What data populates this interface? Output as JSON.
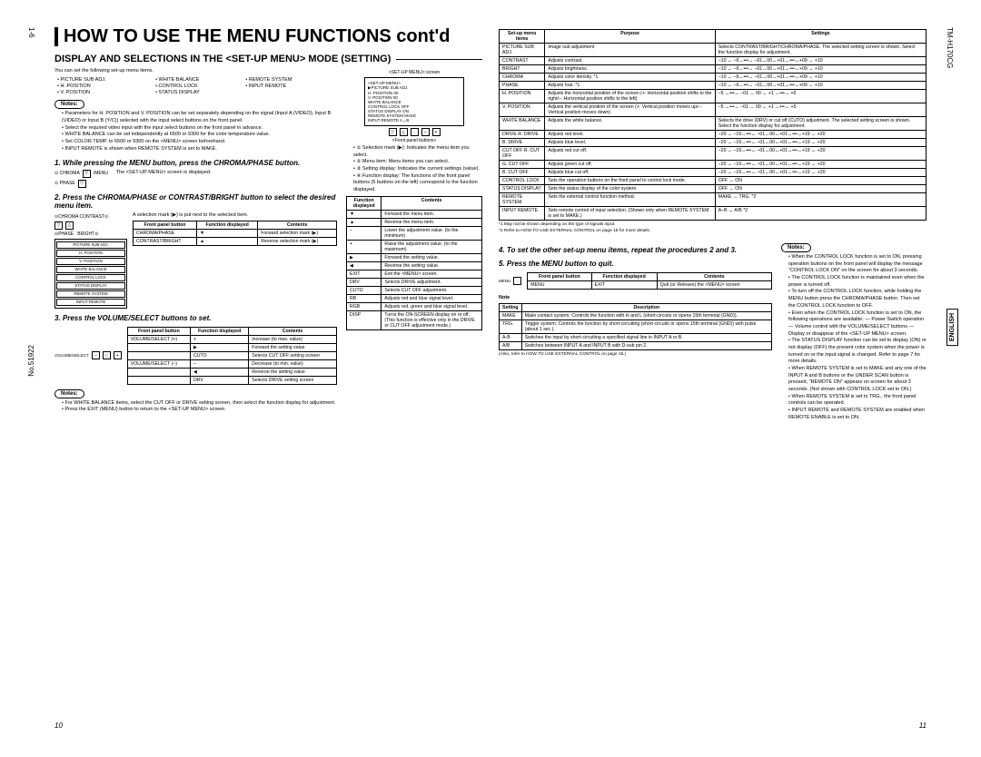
{
  "side": {
    "page": "1-6",
    "docnum": "No.51922",
    "model": "TM-H170CG",
    "lang": "ENGLISH"
  },
  "title": "HOW TO USE THE MENU FUNCTIONS cont'd",
  "subtitle": "DISPLAY AND SELECTIONS IN THE <SET-UP MENU> MODE (SETTING)",
  "intro": "You can set the following set-up menu items.",
  "menu_items_grid": [
    [
      "• PICTURE SUB ADJ.",
      "• WHITE BALANCE",
      "• REMOTE SYSTEM"
    ],
    [
      "• H. POSITION",
      "• CONTROL LOCK",
      "• INPUT REMOTE"
    ],
    [
      "• V. POSITION",
      "• STATUS DISPLAY",
      ""
    ]
  ],
  "notes1": [
    "Parameters for H. POSITION and V. POSITION can be set separately depending on the signal (Input A (VIDEO), Input B (VIDEO) or Input B (Y/C)) selected with the input select buttons on the front panel.",
    "Select the required video input with the input select buttons on the front panel in advance.",
    "WHITE BALANCE can be set independently at 6500 or 9300 for the color temperature value.",
    "Set COLOR TEMP. to 6500 or 9300 on the <MENU> screen beforehand.",
    "INPUT REMOTE is shown when REMOTE SYSTEM is set to MAKE."
  ],
  "screen_caption": "<SET-UP MENU> screen",
  "screen_lines": [
    "<SET-UP MENU>",
    "▶PICTURE SUB ADJ.",
    "H. POSITION         00",
    "V. POSITION         00",
    "WHITE BALANCE",
    "CONTROL LOCK    OFF",
    "STATUS DISPLAY   ON",
    "REMOTE SYSTEM  MAKE",
    "INPUT REMOTE     A↔B"
  ],
  "front_panel": "<Front panel buttons>",
  "circled_notes": [
    "① Selection mark (▶): Indicates the menu item you select.",
    "② Menu item: Menu items you can select.",
    "③ Setting display: Indicates the current settings (value).",
    "④ Function display: The functions of the front panel buttons (5 buttons on the left) correspond to the function displayed."
  ],
  "step1": "1. While pressing the MENU button, press the CHROMA/PHASE button.",
  "step1_desc": "The <SET-UP MENU> screen is displayed.",
  "step2": "2. Press the CHROMA/PHASE or CONTRAST/BRIGHT button to select the desired menu item.",
  "step2_desc": "A selection mark (▶) is put next to the selected item.",
  "table2": {
    "head": [
      "Front panel button",
      "Function displayed",
      "Contents"
    ],
    "rows": [
      [
        "CHROMA/PHASE",
        "▼",
        "Forward selection mark (▶)"
      ],
      [
        "CONTRAST/BRIGHT",
        "▲",
        "Reverse selection mark (▶)"
      ]
    ]
  },
  "setup_box_items": [
    "PICTURE SUB ADJ.",
    "H. POSITION",
    "V. POSITION",
    "WHITE BALANCE",
    "CONTROL LOCK",
    "STATUS DISPLAY",
    "REMOTE SYSTEM",
    "INPUT REMOTE"
  ],
  "step3": "3. Press the VOLUME/SELECT buttons to set.",
  "table3": {
    "head": [
      "Front panel button",
      "Function displayed",
      "Contents"
    ],
    "rows": [
      [
        "VOLUME/SELECT (+)",
        "+",
        "Increase (to max. value)"
      ],
      [
        "",
        "▶",
        "Forward the setting value"
      ],
      [
        "",
        "CUTO",
        "Selects CUT OFF setting screen"
      ],
      [
        "VOLUME/SELECT (–)",
        "–",
        "Decrease (to min. value)"
      ],
      [
        "",
        "◀",
        "Reverse the setting value"
      ],
      [
        "",
        "DRV",
        "Selects DRIVE setting screen"
      ]
    ]
  },
  "notes3": [
    "For WHITE BALANCE items, select the CUT OFF or DRIVE setting screen, then select the function display for adjustment.",
    "Press the EXIT (MENU) button to return to the <SET-UP MENU> screen."
  ],
  "function_table": {
    "head": [
      "Function displayed",
      "Contents"
    ],
    "rows": [
      [
        "▼",
        "Forward the menu item."
      ],
      [
        "▲",
        "Reverse the menu item."
      ],
      [
        "–",
        "Lower the adjustment value. (to the minimum)"
      ],
      [
        "+",
        "Raise the adjustment value. (to the maximum)"
      ],
      [
        "▶",
        "Forward the setting value."
      ],
      [
        "◀",
        "Reverse the setting value."
      ],
      [
        "EXIT",
        "Exit the <MENU> screen."
      ],
      [
        "DRV",
        "Selects DRIVE adjustment."
      ],
      [
        "CUTO",
        "Selects CUT OFF adjustment."
      ],
      [
        "RB",
        "Adjusts red and blue signal level."
      ],
      [
        "RGB",
        "Adjusts red, green and blue signal level."
      ],
      [
        "DISP",
        "Turns the ON-SCREEN display on or off. (This function is effective only in the DRIVE or CUT OFF adjustment mode.)"
      ]
    ]
  },
  "step4": "4. To set the other set-up menu items, repeat the procedures 2 and 3.",
  "step5": "5. Press the MENU button to quit.",
  "table5": {
    "head": [
      "Front panel button",
      "Function displayed",
      "Contents"
    ],
    "rows": [
      [
        "MENU",
        "EXIT",
        "Quit (or Release) the <MENU> screen"
      ]
    ]
  },
  "note_table": {
    "head": [
      "Setting",
      "Description"
    ],
    "rows": [
      [
        "MAKE",
        "Make contact system: Controls the function with H and L (short-circuits or opens 15th terminal (GND))."
      ],
      [
        "TRG.",
        "Trigger system: Controls the function by short-circuiting (short-circuits or opens 15th terminal (GND)) with pulse (about 1 sec.)."
      ],
      [
        "A-B",
        "Switches the input by short-circuiting a specified signal line in INPUT A or B."
      ],
      [
        "A/B",
        "Switches between INPUT A and INPUT B with D-sub pin 2."
      ]
    ]
  },
  "note_ref": "(Also, refer to HOW TO USE EXTERNAL CONTROL on page 15.)",
  "big_table": {
    "head": [
      "Set-up menu items",
      "Purpose",
      "Settings"
    ],
    "rows": [
      [
        "PICTURE SUB ADJ.",
        "Image sub adjustment",
        "Selects CONTRAST/BRIGHT/CHROMA/PHASE. The selected setting screen is shown. Select the function display for adjustment."
      ],
      [
        "    CONTRAST",
        "Adjusts contrast.",
        "–10 ↔ –9↔•••↔ –01↔00↔+01↔•••↔+09 ↔ +10"
      ],
      [
        "    BRIGHT",
        "Adjusts brightness.",
        "–10 ↔ –9↔•••↔ –01↔00↔+01↔•••↔+09 ↔ +10"
      ],
      [
        "    CHROMA",
        "Adjusts color density.           *1",
        "–10 ↔ –9↔•••↔ –01↔00↔+01↔•••↔+09 ↔ +10"
      ],
      [
        "    PHASE",
        "Adjusts hue.                          *1",
        "–10 ↔ –9↔•••↔ –01↔00↔+01↔•••↔+09 ↔ +10"
      ],
      [
        "H. POSITION",
        "Adjusts the horizontal position of the screen (+: Horizontal position shifts to the right/–: Horizontal position shifts to the left)",
        "–5 ↔•••↔ –01 ↔ 00 ↔ +1 ↔•••↔ +5"
      ],
      [
        "V. POSITION",
        "Adjusts the vertical position of the screen (+: Vertical position moves up/–: Vertical position moves down)",
        "–5 ↔•••↔ –01 ↔ 00 ↔ +1 ↔•••↔ +5"
      ],
      [
        "WHITE BALANCE",
        "Adjusts the white balance.",
        "Selects the drive (DRV) or cut off (CUTO) adjustment. The selected setting screen is shown. Select the function display for adjustment."
      ],
      [
        "  DRIVE   R. DRIVE",
        "Adjusts red level.",
        "–20 ↔ –19↔•••↔ –01↔00↔+01↔•••↔+19 ↔ +20"
      ],
      [
        "              B. DRIVE",
        "Adjusts blue level.",
        "–20 ↔ –19↔•••↔ –01↔00↔+01↔•••↔+19 ↔ +20"
      ],
      [
        "  CUT OFF R. CUT OFF",
        "Adjusts red cut off.",
        "–20 ↔ –19↔•••↔ –01↔00↔+01↔•••↔+19 ↔ +20"
      ],
      [
        "              G. CUT OFF",
        "Adjusts green cut off.",
        "–20 ↔ –19↔•••↔ –01↔00↔+01↔•••↔+19 ↔ +20"
      ],
      [
        "              B. CUT OFF",
        "Adjusts blue cut off.",
        "–20 ↔ –19↔•••↔ –01↔00↔+01↔•••↔+19 ↔ +20"
      ],
      [
        "CONTROL LOCK",
        "Sets the operation buttons on the front panel to control lock mode.",
        "OFF ↔ ON"
      ],
      [
        "STATUS DISPLAY",
        "Sets the status display of the color system.",
        "OFF ↔ ON"
      ],
      [
        "REMOTE SYSTEM",
        "Sets the external control function method.",
        "MAKE ↔ TRG.                                                    *2"
      ],
      [
        "INPUT REMOTE",
        "Sets remote control of input selection. (Shown only when REMOTE SYSTEM is set to MAKE.)",
        "A–B ↔ A/B                                                       *2"
      ]
    ]
  },
  "big_footnotes": [
    "*1 May not be shown depending on the type of signals input.",
    "*2 Refer to HOW TO USE EXTERNAL CONTROL on page 15 for more details."
  ],
  "right_notes": [
    "When the CONTROL LOCK function is set to ON, pressing operation buttons on the front panel will display the message \"CONTROL LOCK ON\" on the screen for about 3 seconds.",
    "The CONTROL LOCK function is maintained even when the power is turned off.",
    "To turn off the CONTROL LOCK function, while holding the MENU button press the CHROMA/PHASE button. Then set the CONTROL LOCK function to OFF.",
    "Even when the CONTROL LOCK function is set to ON, the following operations are available: — Power Switch operation — Volume control with the VOLUME/SELECT buttons — Display or disappear of the <SET-UP MENU> screen.",
    "The STATUS DISPLAY function can be set to display (ON) or not display (OFF) the present color system when the power is turned on or the input signal is changed. Refer to page 7 for more details.",
    "When REMOTE SYSTEM is set to MAKE and any one of the INPUT A and B buttons or the UNDER SCAN button is pressed, \"REMOTE ON\" appears on screen for about 3 seconds. (Not shown with CONTROL LOCK set to ON.)",
    "When REMOTE SYSTEM is set to TRG., the front panel controls can be operated.",
    "INPUT REMOTE and REMOTE SYSTEM are enabled when REMOTE ENABLE is set to ON."
  ],
  "page_l": "10",
  "page_r": "11"
}
